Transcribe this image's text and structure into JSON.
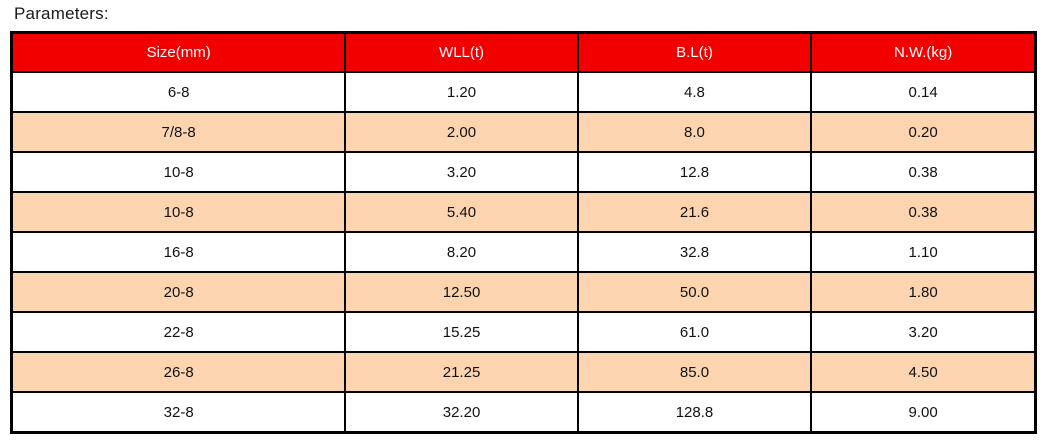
{
  "page": {
    "title": "Parameters:"
  },
  "table": {
    "columns": [
      "Size(mm)",
      "WLL(t)",
      "B.L(t)",
      "N.W.(kg)"
    ],
    "rows": [
      [
        "6-8",
        "1.20",
        "4.8",
        "0.14"
      ],
      [
        "7/8-8",
        "2.00",
        "8.0",
        "0.20"
      ],
      [
        "10-8",
        "3.20",
        "12.8",
        "0.38"
      ],
      [
        "10-8",
        "5.40",
        "21.6",
        "0.38"
      ],
      [
        "16-8",
        "8.20",
        "32.8",
        "1.10"
      ],
      [
        "20-8",
        "12.50",
        "50.0",
        "1.80"
      ],
      [
        "22-8",
        "15.25",
        "61.0",
        "3.20"
      ],
      [
        "26-8",
        "21.25",
        "85.0",
        "4.50"
      ],
      [
        "32-8",
        "32.20",
        "128.8",
        "9.00"
      ]
    ],
    "colors": {
      "header_bg": "#f20000",
      "header_text": "#ffffff",
      "stripe_bg": "#fcd5b0",
      "row_bg": "#ffffff",
      "border": "#000000"
    }
  },
  "chart_data": {
    "type": "table",
    "title": "Parameters:",
    "columns": [
      "Size(mm)",
      "WLL(t)",
      "B.L(t)",
      "N.W.(kg)"
    ],
    "rows": [
      {
        "size_mm": "6-8",
        "wll_t": 1.2,
        "bl_t": 4.8,
        "nw_kg": 0.14
      },
      {
        "size_mm": "7/8-8",
        "wll_t": 2.0,
        "bl_t": 8.0,
        "nw_kg": 0.2
      },
      {
        "size_mm": "10-8",
        "wll_t": 3.2,
        "bl_t": 12.8,
        "nw_kg": 0.38
      },
      {
        "size_mm": "10-8",
        "wll_t": 5.4,
        "bl_t": 21.6,
        "nw_kg": 0.38
      },
      {
        "size_mm": "16-8",
        "wll_t": 8.2,
        "bl_t": 32.8,
        "nw_kg": 1.1
      },
      {
        "size_mm": "20-8",
        "wll_t": 12.5,
        "bl_t": 50.0,
        "nw_kg": 1.8
      },
      {
        "size_mm": "22-8",
        "wll_t": 15.25,
        "bl_t": 61.0,
        "nw_kg": 3.2
      },
      {
        "size_mm": "26-8",
        "wll_t": 21.25,
        "bl_t": 85.0,
        "nw_kg": 4.5
      },
      {
        "size_mm": "32-8",
        "wll_t": 32.2,
        "bl_t": 128.8,
        "nw_kg": 9.0
      }
    ],
    "layout": {
      "header_style": "red background, white text",
      "row_striping": "white / peach alternating starting white",
      "grid": "on"
    }
  }
}
